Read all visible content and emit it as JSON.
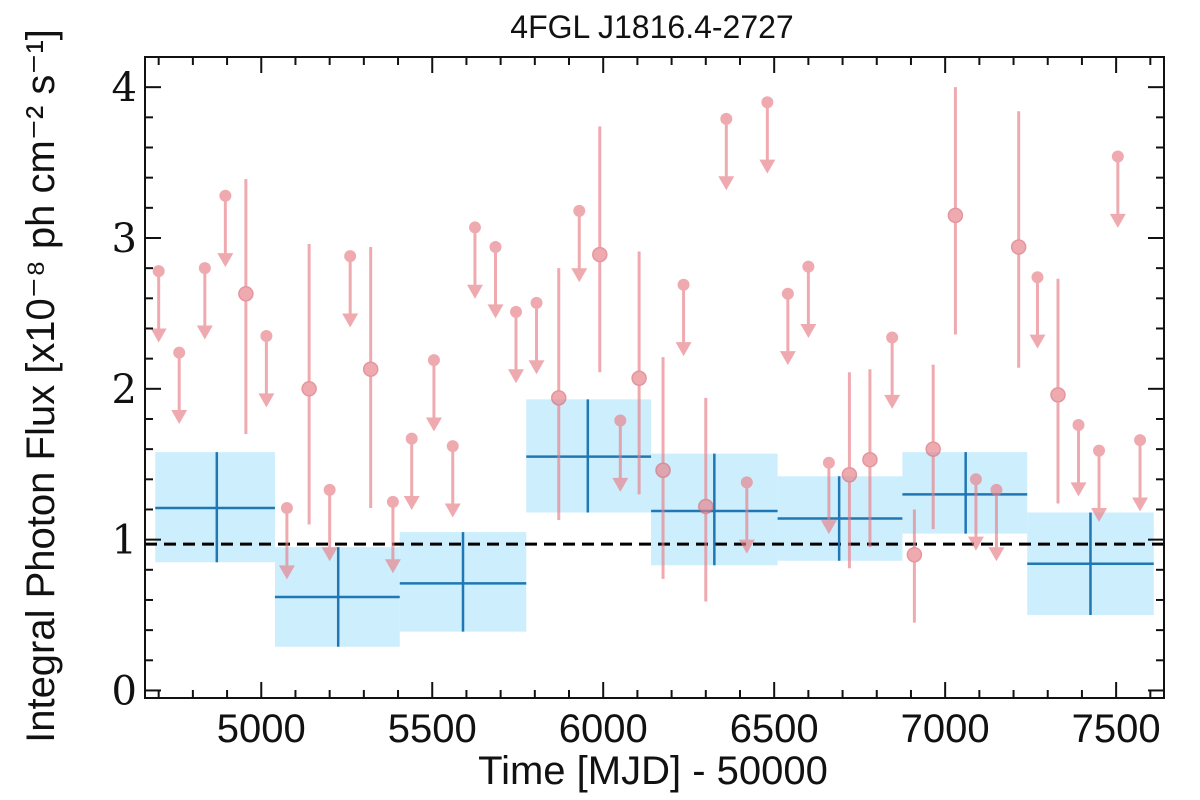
{
  "chart_data": {
    "type": "scatter",
    "title": "4FGL J1816.4-2727",
    "xlabel": "Time [MJD] - 50000",
    "ylabel": "Integral Photon Flux [x10⁻⁸ ph cm⁻² s⁻¹]",
    "xlim": [
      4660,
      7640
    ],
    "ylim": [
      -0.05,
      4.2
    ],
    "x_ticks": [
      5000,
      5500,
      6000,
      6500,
      7000,
      7500
    ],
    "x_tick_labels": [
      "5000",
      "5500",
      "6000",
      "6500",
      "7000",
      "7500"
    ],
    "y_ticks": [
      0,
      1,
      2,
      3,
      4
    ],
    "y_tick_labels": [
      "0",
      "1",
      "2",
      "3",
      "4"
    ],
    "grid": false,
    "colors": {
      "yearly_box": "#cdeefc",
      "yearly_marker": "#1f77b4",
      "monthly": "#e87e87",
      "reference_line": "#000000"
    },
    "reference_line": {
      "y": 0.97,
      "style": "dashed"
    },
    "yearly_bins": [
      {
        "x_start": 4690,
        "x_end": 5040,
        "x_center": 4870,
        "flux": 1.21,
        "err_low": 0.36,
        "err_high": 0.37
      },
      {
        "x_start": 5040,
        "x_end": 5405,
        "x_center": 5225,
        "flux": 0.62,
        "err_low": 0.33,
        "err_high": 0.33
      },
      {
        "x_start": 5405,
        "x_end": 5775,
        "x_center": 5590,
        "flux": 0.71,
        "err_low": 0.32,
        "err_high": 0.34
      },
      {
        "x_start": 5775,
        "x_end": 6140,
        "x_center": 5955,
        "flux": 1.55,
        "err_low": 0.37,
        "err_high": 0.38
      },
      {
        "x_start": 6140,
        "x_end": 6510,
        "x_center": 6325,
        "flux": 1.19,
        "err_low": 0.36,
        "err_high": 0.38
      },
      {
        "x_start": 6510,
        "x_end": 6875,
        "x_center": 6690,
        "flux": 1.14,
        "err_low": 0.28,
        "err_high": 0.28
      },
      {
        "x_start": 6875,
        "x_end": 7240,
        "x_center": 7060,
        "flux": 1.3,
        "err_low": 0.26,
        "err_high": 0.28
      },
      {
        "x_start": 7240,
        "x_end": 7610,
        "x_center": 7425,
        "flux": 0.84,
        "err_low": 0.34,
        "err_high": 0.34
      }
    ],
    "monthly_detections": [
      {
        "x": 4955,
        "flux": 2.63,
        "err_low": 0.93,
        "err_high": 0.76
      },
      {
        "x": 5140,
        "flux": 2.0,
        "err_low": 0.9,
        "err_high": 0.96
      },
      {
        "x": 5320,
        "flux": 2.13,
        "err_low": 0.92,
        "err_high": 0.81
      },
      {
        "x": 5870,
        "flux": 1.94,
        "err_low": 0.81,
        "err_high": 0.86
      },
      {
        "x": 5990,
        "flux": 2.89,
        "err_low": 0.78,
        "err_high": 0.85
      },
      {
        "x": 6105,
        "flux": 2.07,
        "err_low": 0.77,
        "err_high": 0.84
      },
      {
        "x": 6175,
        "flux": 1.46,
        "err_low": 0.72,
        "err_high": 0.75
      },
      {
        "x": 6300,
        "flux": 1.22,
        "err_low": 0.63,
        "err_high": 0.72
      },
      {
        "x": 6720,
        "flux": 1.43,
        "err_low": 0.62,
        "err_high": 0.68
      },
      {
        "x": 6780,
        "flux": 1.53,
        "err_low": 0.58,
        "err_high": 0.6
      },
      {
        "x": 6910,
        "flux": 0.9,
        "err_low": 0.45,
        "err_high": 0.3
      },
      {
        "x": 6965,
        "flux": 1.6,
        "err_low": 0.53,
        "err_high": 0.56
      },
      {
        "x": 7030,
        "flux": 3.15,
        "err_low": 0.79,
        "err_high": 0.85
      },
      {
        "x": 7215,
        "flux": 2.94,
        "err_low": 0.8,
        "err_high": 0.9
      },
      {
        "x": 7330,
        "flux": 1.96,
        "err_low": 0.72,
        "err_high": 0.77
      }
    ],
    "monthly_upper_limits": [
      {
        "x": 4700,
        "flux": 2.78,
        "limit": 2.34
      },
      {
        "x": 4760,
        "flux": 2.24,
        "limit": 1.8
      },
      {
        "x": 4835,
        "flux": 2.8,
        "limit": 2.36
      },
      {
        "x": 4895,
        "flux": 3.28,
        "limit": 2.84
      },
      {
        "x": 5015,
        "flux": 2.35,
        "limit": 1.91
      },
      {
        "x": 5075,
        "flux": 1.21,
        "limit": 0.77
      },
      {
        "x": 5200,
        "flux": 1.33,
        "limit": 0.89
      },
      {
        "x": 5260,
        "flux": 2.88,
        "limit": 2.44
      },
      {
        "x": 5385,
        "flux": 1.25,
        "limit": 0.81
      },
      {
        "x": 5440,
        "flux": 1.67,
        "limit": 1.23
      },
      {
        "x": 5505,
        "flux": 2.19,
        "limit": 1.75
      },
      {
        "x": 5560,
        "flux": 1.62,
        "limit": 1.18
      },
      {
        "x": 5625,
        "flux": 3.07,
        "limit": 2.63
      },
      {
        "x": 5685,
        "flux": 2.94,
        "limit": 2.5
      },
      {
        "x": 5745,
        "flux": 2.51,
        "limit": 2.07
      },
      {
        "x": 5805,
        "flux": 2.57,
        "limit": 2.13
      },
      {
        "x": 5930,
        "flux": 3.18,
        "limit": 2.74
      },
      {
        "x": 6050,
        "flux": 1.79,
        "limit": 1.35
      },
      {
        "x": 6235,
        "flux": 2.69,
        "limit": 2.25
      },
      {
        "x": 6360,
        "flux": 3.79,
        "limit": 3.35
      },
      {
        "x": 6420,
        "flux": 1.38,
        "limit": 0.94
      },
      {
        "x": 6480,
        "flux": 3.9,
        "limit": 3.46
      },
      {
        "x": 6540,
        "flux": 2.63,
        "limit": 2.19
      },
      {
        "x": 6600,
        "flux": 2.81,
        "limit": 2.37
      },
      {
        "x": 6660,
        "flux": 1.51,
        "limit": 1.07
      },
      {
        "x": 6845,
        "flux": 2.34,
        "limit": 1.9
      },
      {
        "x": 7090,
        "flux": 1.4,
        "limit": 0.96
      },
      {
        "x": 7150,
        "flux": 1.33,
        "limit": 0.89
      },
      {
        "x": 7270,
        "flux": 2.74,
        "limit": 2.3
      },
      {
        "x": 7390,
        "flux": 1.76,
        "limit": 1.32
      },
      {
        "x": 7450,
        "flux": 1.59,
        "limit": 1.15
      },
      {
        "x": 7505,
        "flux": 3.54,
        "limit": 3.1
      },
      {
        "x": 7570,
        "flux": 1.66,
        "limit": 1.22
      }
    ]
  }
}
